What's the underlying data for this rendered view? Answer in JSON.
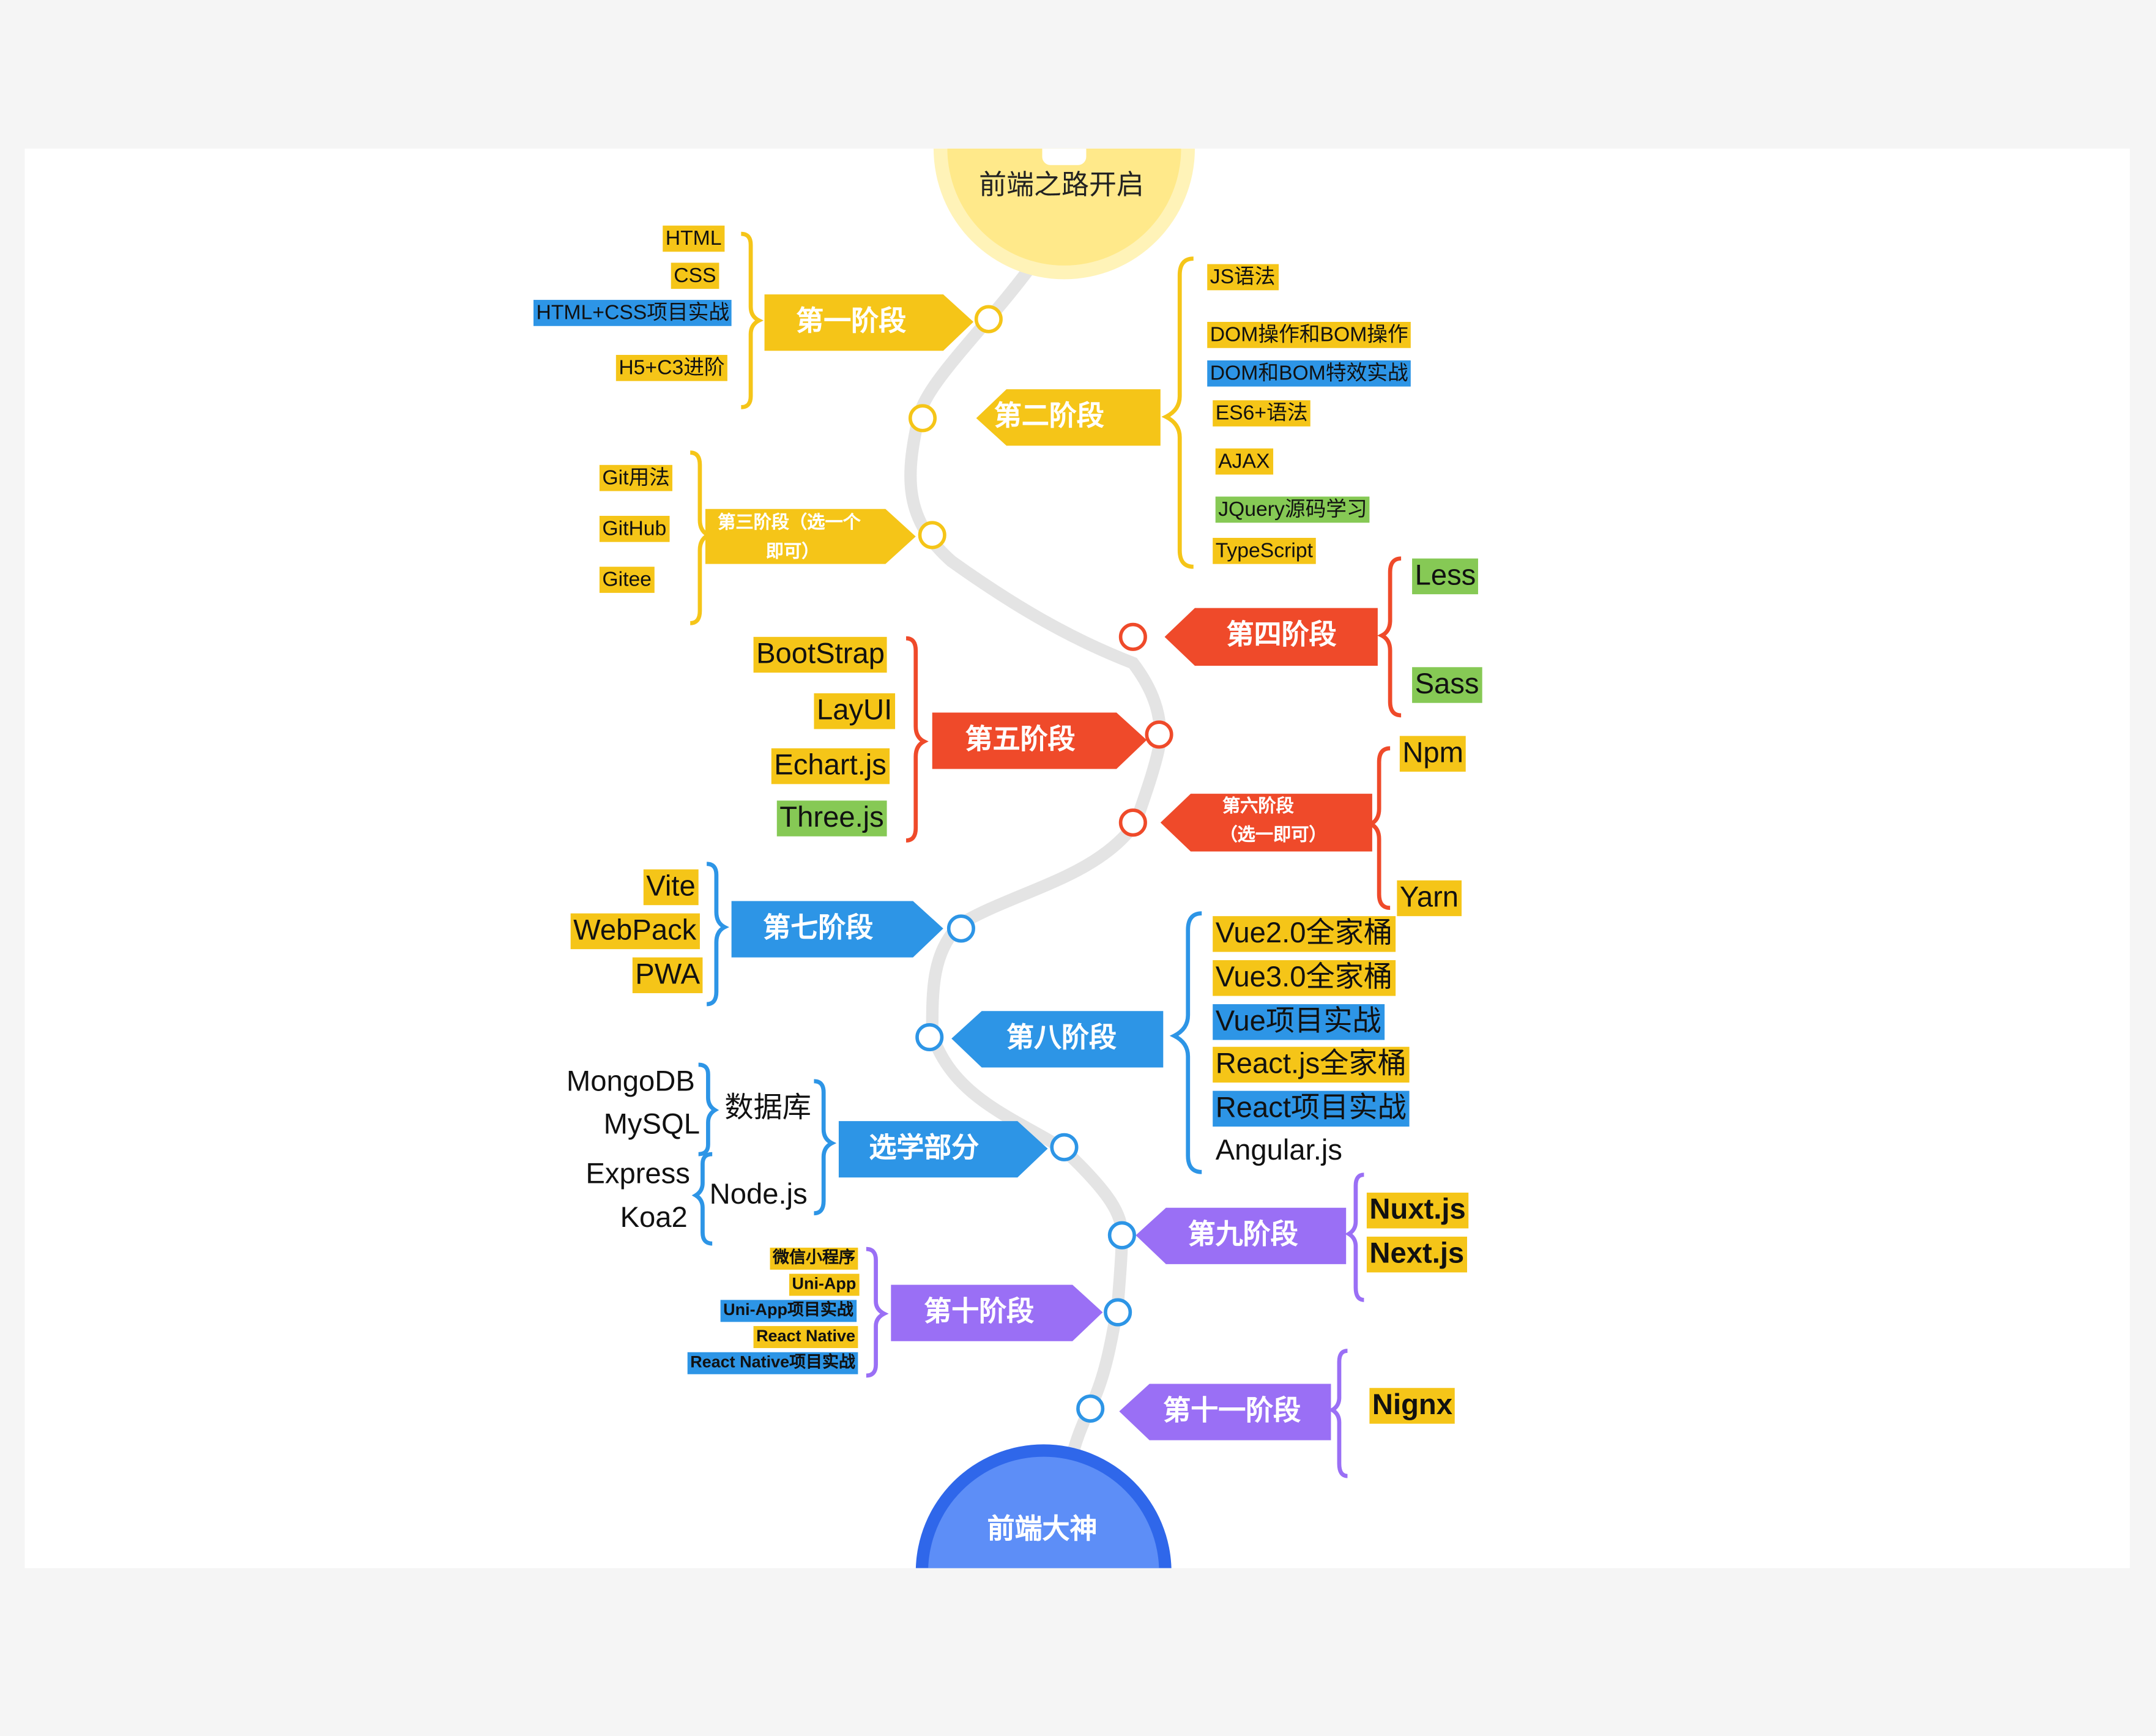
{
  "start": {
    "label": "前端之路开启"
  },
  "end": {
    "label": "前端大神"
  },
  "colors": {
    "yellow": "#f5c518",
    "red": "#ef4a2a",
    "blue": "#2d95e6",
    "purple": "#9a6ff5",
    "green": "#86c955",
    "road": "#e4e4e4",
    "start_fill": "#ffe98a",
    "start_ring": "#fff3b8",
    "end_fill": "#5d8ef7",
    "end_ring": "#2f67ea"
  },
  "stages": {
    "s1": {
      "label": "第一阶段",
      "items": [
        "HTML",
        "CSS",
        "HTML+CSS项目实战",
        "H5+C3进阶"
      ]
    },
    "s2": {
      "label": "第二阶段",
      "items": [
        "JS语法",
        "DOM操作和BOM操作",
        "DOM和BOM特效实战",
        "ES6+语法",
        "AJAX",
        "JQuery源码学习",
        "TypeScript"
      ]
    },
    "s3": {
      "label_line1": "第三阶段（选一个",
      "label_line2": "即可）",
      "items": [
        "Git用法",
        "GitHub",
        "Gitee"
      ]
    },
    "s4": {
      "label": "第四阶段",
      "items": [
        "Less",
        "Sass"
      ]
    },
    "s5": {
      "label": "第五阶段",
      "items": [
        "BootStrap",
        "LayUI",
        "Echart.js",
        "Three.js"
      ]
    },
    "s6": {
      "label_line1": "第六阶段",
      "label_line2": "（选一即可）",
      "items": [
        "Npm",
        "Yarn"
      ]
    },
    "s7": {
      "label": "第七阶段",
      "items": [
        "Vite",
        "WebPack",
        "PWA"
      ]
    },
    "s8": {
      "label": "第八阶段",
      "items": [
        "Vue2.0全家桶",
        "Vue3.0全家桶",
        "Vue项目实战",
        "React.js全家桶",
        "React项目实战",
        "Angular.js"
      ]
    },
    "opt": {
      "label": "选学部分",
      "groups": [
        {
          "label": "数据库",
          "items": [
            "MongoDB",
            "MySQL"
          ]
        },
        {
          "label": "Node.js",
          "items": [
            "Express",
            "Koa2"
          ]
        }
      ]
    },
    "s9": {
      "label": "第九阶段",
      "items": [
        "Nuxt.js",
        "Next.js"
      ]
    },
    "s10": {
      "label": "第十阶段",
      "items": [
        "微信小程序",
        "Uni-App",
        "Uni-App项目实战",
        "React Native",
        "React Native项目实战"
      ]
    },
    "s11": {
      "label": "第十一阶段",
      "items": [
        "Nignx"
      ]
    }
  }
}
